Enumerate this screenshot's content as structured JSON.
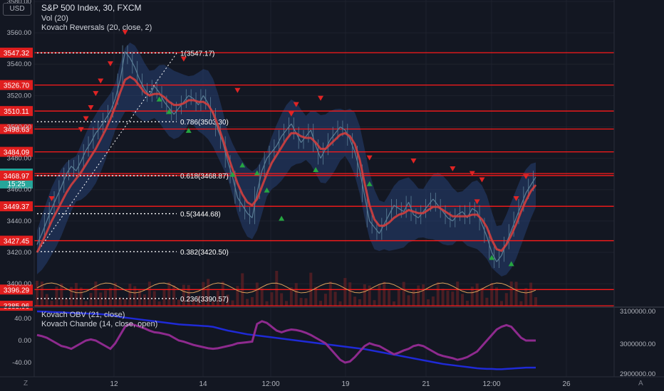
{
  "header": {
    "title": "S&P 500 Index, 30, FXCM",
    "line2": "Vol (20)",
    "line3": "Kovach Reversals (20, close, 2)",
    "currency": "USD"
  },
  "lower_pane_header": {
    "line1": "Kovach OBV (21, close)",
    "line2": "Kovach Chande (14, close, open)"
  },
  "corner_labels": {
    "left": "Z",
    "right": "A"
  },
  "colors": {
    "background": "#131722",
    "price": "#5b7f97",
    "price_band": "#2a4a86",
    "ma_line": "#d23f3f",
    "level_line": "#ff1a1a",
    "fib_line": "#ffffff",
    "volume": "#5a1f24",
    "vol_osc": "#d9a05b",
    "obv": "#1f2ad6",
    "chande": "#8e2a8e",
    "buy_marker": "#26a641",
    "sell_marker": "#e02424",
    "current_price_tag": "#26a69a"
  },
  "chart_data": [
    {
      "type": "line",
      "title": "S&P 500 Index, 30, FXCM",
      "x_ticks": [
        "12",
        "14",
        "12:00",
        "19",
        "21",
        "12:00",
        "26"
      ],
      "y_ticks": [
        "3580.00",
        "3560.00",
        "3540.00",
        "3520.00",
        "3500.00",
        "3480.00",
        "3460.00",
        "3440.00",
        "3420.00",
        "3400.00"
      ],
      "ylim": [
        3386,
        3580
      ],
      "price_series": [
        3425,
        3432,
        3440,
        3448,
        3455,
        3462,
        3470,
        3475,
        3472,
        3478,
        3485,
        3490,
        3496,
        3500,
        3505,
        3510,
        3518,
        3530,
        3548,
        3544,
        3538,
        3530,
        3524,
        3520,
        3526,
        3522,
        3516,
        3512,
        3508,
        3512,
        3516,
        3520,
        3518,
        3514,
        3520,
        3515,
        3508,
        3498,
        3490,
        3478,
        3468,
        3455,
        3450,
        3445,
        3442,
        3458,
        3472,
        3480,
        3484,
        3488,
        3494,
        3498,
        3502,
        3496,
        3490,
        3494,
        3498,
        3488,
        3480,
        3486,
        3492,
        3496,
        3500,
        3498,
        3492,
        3484,
        3472,
        3456,
        3440,
        3436,
        3432,
        3438,
        3444,
        3450,
        3448,
        3446,
        3452,
        3444,
        3442,
        3446,
        3450,
        3454,
        3450,
        3446,
        3442,
        3440,
        3444,
        3446,
        3442,
        3448,
        3446,
        3438,
        3430,
        3420,
        3414,
        3418,
        3426,
        3434,
        3442,
        3450,
        3458,
        3463,
        3468
      ],
      "ma_series": [
        3420,
        3426,
        3433,
        3440,
        3446,
        3452,
        3458,
        3463,
        3467,
        3471,
        3476,
        3481,
        3486,
        3492,
        3498,
        3505,
        3513,
        3522,
        3530,
        3532,
        3530,
        3526,
        3522,
        3520,
        3521,
        3521,
        3519,
        3516,
        3514,
        3514,
        3515,
        3517,
        3517,
        3516,
        3516,
        3514,
        3509,
        3501,
        3492,
        3482,
        3473,
        3464,
        3457,
        3452,
        3450,
        3454,
        3462,
        3470,
        3477,
        3482,
        3487,
        3492,
        3496,
        3496,
        3494,
        3493,
        3493,
        3490,
        3486,
        3486,
        3489,
        3492,
        3495,
        3496,
        3494,
        3489,
        3479,
        3464,
        3450,
        3441,
        3437,
        3437,
        3439,
        3442,
        3444,
        3445,
        3447,
        3446,
        3445,
        3445,
        3447,
        3449,
        3449,
        3447,
        3445,
        3443,
        3443,
        3443,
        3443,
        3444,
        3444,
        3441,
        3436,
        3428,
        3422,
        3421,
        3425,
        3431,
        3438,
        3446,
        3453,
        3459,
        3463
      ],
      "levels": [
        "3547.32",
        "3526.70",
        "3510.11",
        "3498.63",
        "3484.09",
        "3470.25",
        "3468.97",
        "3449.37",
        "3427.45",
        "3396.29",
        "3385.96"
      ],
      "current_price": "3470.25",
      "countdown": "15:25",
      "fib_labels": [
        "1(3547.17)",
        "0.786(3503.30)",
        "0.618(3468.87)",
        "0.5(3444.68)",
        "0.382(3420.50)",
        "0.236(3390.57)"
      ],
      "fib_values": [
        3547.17,
        3503.3,
        3468.87,
        3444.68,
        3420.5,
        3390.57
      ],
      "sell_markers": [
        [
          3,
          3454
        ],
        [
          9,
          3498
        ],
        [
          10,
          3505
        ],
        [
          11,
          3512
        ],
        [
          12,
          3521
        ],
        [
          13,
          3529
        ],
        [
          15,
          3540
        ],
        [
          18,
          3560
        ],
        [
          30,
          3543
        ],
        [
          41,
          3523
        ],
        [
          52,
          3508
        ],
        [
          53,
          3514
        ],
        [
          58,
          3518
        ],
        [
          68,
          3480
        ],
        [
          77,
          3478
        ],
        [
          85,
          3473
        ],
        [
          89,
          3470
        ],
        [
          90,
          3452
        ],
        [
          91,
          3466
        ],
        [
          98,
          3454
        ],
        [
          100,
          3468
        ]
      ],
      "buy_markers": [
        [
          25,
          3518
        ],
        [
          27,
          3510
        ],
        [
          31,
          3498
        ],
        [
          40,
          3470
        ],
        [
          42,
          3476
        ],
        [
          45,
          3471
        ],
        [
          47,
          3460
        ],
        [
          50,
          3442
        ],
        [
          57,
          3473
        ],
        [
          68,
          3464
        ],
        [
          93,
          3417
        ],
        [
          97,
          3413
        ]
      ]
    },
    {
      "type": "line",
      "title": "Kovach OBV (21, close)",
      "y_ticks": [
        "40.00",
        "0.00",
        "-40.00"
      ],
      "y_ticks_right": [
        "3100000.00",
        "3000000.00",
        "2900000.00"
      ],
      "obv": [
        3100000,
        3099500,
        3099000,
        3098000,
        3097500,
        3097000,
        3096000,
        3095000,
        3094500,
        3094000,
        3093000,
        3092500,
        3092000,
        3091000,
        3090000,
        3088000,
        3085000,
        3082000,
        3080000,
        3078000,
        3076000,
        3074000,
        3072000,
        3070000,
        3068000,
        3066000,
        3064000,
        3062000,
        3060000,
        3058000,
        3057000,
        3056000,
        3055000,
        3054000,
        3053000,
        3052000,
        3050000,
        3046000,
        3042000,
        3038000,
        3035000,
        3032000,
        3029000,
        3026000,
        3024000,
        3022000,
        3020000,
        3018000,
        3016000,
        3014000,
        3012000,
        3010000,
        3008000,
        3006000,
        3004000,
        3002000,
        3000000,
        2998000,
        2996000,
        2994000,
        2992000,
        2990000,
        2988000,
        2986000,
        2984000,
        2982000,
        2980000,
        2978000,
        2975000,
        2972000,
        2969000,
        2966000,
        2963000,
        2960000,
        2957000,
        2954000,
        2951000,
        2948000,
        2945000,
        2942000,
        2939000,
        2936000,
        2933000,
        2930000,
        2928000,
        2926000,
        2924000,
        2922000,
        2920000,
        2918000,
        2916000,
        2915000,
        2914000,
        2914000,
        2913000,
        2913000,
        2914000,
        2915000,
        2916000,
        2917000,
        2918000,
        2918000,
        2918000
      ],
      "chande": [
        10,
        8,
        5,
        0,
        -5,
        -10,
        -12,
        -15,
        -10,
        -5,
        0,
        2,
        0,
        -5,
        -10,
        -15,
        -5,
        10,
        25,
        30,
        28,
        25,
        22,
        18,
        15,
        14,
        12,
        10,
        5,
        0,
        -2,
        -5,
        -8,
        -10,
        -12,
        -14,
        -15,
        -14,
        -12,
        -10,
        -8,
        -5,
        -4,
        -3,
        -2,
        30,
        35,
        32,
        25,
        18,
        15,
        18,
        20,
        19,
        17,
        14,
        10,
        5,
        0,
        -5,
        -15,
        -25,
        -35,
        -40,
        -38,
        -30,
        -20,
        -10,
        -5,
        -8,
        -10,
        -15,
        -20,
        -25,
        -22,
        -18,
        -15,
        -10,
        -8,
        -10,
        -15,
        -20,
        -25,
        -28,
        -30,
        -32,
        -35,
        -33,
        -30,
        -25,
        -20,
        -10,
        0,
        10,
        20,
        25,
        28,
        25,
        15,
        5,
        0,
        0,
        0
      ]
    }
  ]
}
